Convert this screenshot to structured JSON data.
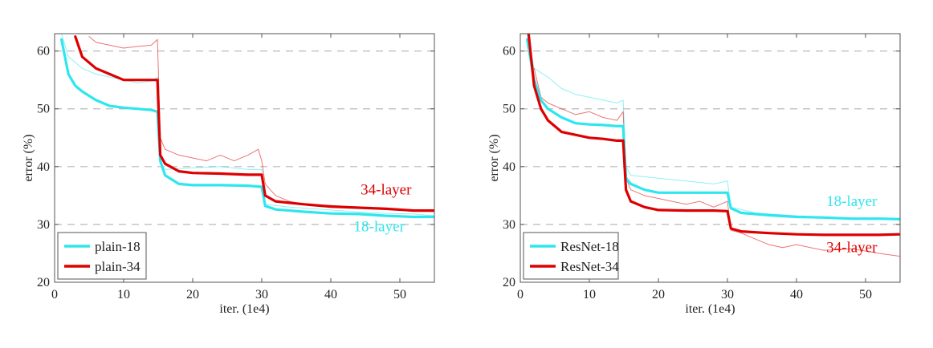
{
  "colors": {
    "cyan": "#2ee6ee",
    "red": "#dd0000",
    "grid": "#b8b8b8"
  },
  "chart_data": [
    {
      "type": "line",
      "xlabel": "iter. (1e4)",
      "ylabel": "error (%)",
      "xlim": [
        0,
        55
      ],
      "ylim": [
        20,
        63
      ],
      "xticks": [
        0,
        10,
        20,
        30,
        40,
        50
      ],
      "yticks": [
        20,
        30,
        40,
        50,
        60
      ],
      "grid": "horizontal dashed",
      "legend_position": "bottom-left",
      "legend": [
        "plain-18",
        "plain-34"
      ],
      "annotations": [
        {
          "text": "34-layer",
          "color": "red",
          "x": 48,
          "y": 35.2
        },
        {
          "text": "18-layer",
          "color": "cyan",
          "x": 47,
          "y": 28.8
        }
      ],
      "series": [
        {
          "name": "plain-18",
          "color": "cyan",
          "style": "bold",
          "x": [
            1,
            2,
            3,
            4,
            6,
            8,
            10,
            12,
            14,
            14.9,
            15.3,
            16,
            18,
            20,
            24,
            28,
            30,
            30.5,
            32,
            36,
            40,
            44,
            48,
            52,
            55
          ],
          "y": [
            62,
            56,
            54,
            53,
            51.5,
            50.5,
            50.2,
            50,
            49.8,
            49.5,
            41,
            38.5,
            37,
            36.8,
            36.8,
            36.7,
            36.5,
            33.2,
            32.6,
            32.2,
            31.9,
            31.8,
            31.5,
            31.3,
            31.3
          ]
        },
        {
          "name": "plain-34",
          "color": "red",
          "style": "bold",
          "x": [
            3,
            4,
            6,
            8,
            10,
            12,
            14,
            14.9,
            15.3,
            16,
            18,
            20,
            24,
            28,
            30,
            30.5,
            32,
            36,
            40,
            44,
            48,
            52,
            55
          ],
          "y": [
            62.5,
            59,
            57,
            56,
            55,
            55,
            55,
            55,
            42,
            40.5,
            39.2,
            38.9,
            38.8,
            38.6,
            38.6,
            35,
            34,
            33.5,
            33.1,
            32.9,
            32.7,
            32.4,
            32.4
          ]
        },
        {
          "name": "plain-18 train",
          "color": "cyan",
          "style": "thin",
          "x": [
            1,
            2,
            4,
            6,
            8,
            10,
            12,
            14,
            14.9,
            15.3,
            16,
            20,
            24,
            28,
            30,
            30.5,
            34,
            40,
            46,
            52,
            55
          ],
          "y": [
            63,
            59,
            57,
            56,
            55.5,
            55,
            54.5,
            54.8,
            55.5,
            40.5,
            39.5,
            39.8,
            40,
            39.5,
            39.5,
            33.5,
            33,
            32.5,
            32,
            31.8,
            31.5
          ]
        },
        {
          "name": "plain-34 train",
          "color": "red",
          "style": "thin",
          "x": [
            5,
            6,
            8,
            10,
            12,
            14,
            14.9,
            15.3,
            16,
            18,
            20,
            22,
            24,
            26,
            28,
            29.5,
            30,
            30.5,
            32,
            34,
            36,
            40,
            44,
            48,
            52,
            55
          ],
          "y": [
            62.5,
            61.5,
            61,
            60.5,
            60.8,
            61,
            62,
            45,
            43,
            42,
            41.5,
            41,
            42,
            41,
            42,
            43,
            41,
            37,
            35,
            34,
            33.5,
            33.3,
            33,
            32.8,
            32.5,
            32.2
          ]
        }
      ]
    },
    {
      "type": "line",
      "xlabel": "iter. (1e4)",
      "ylabel": "error (%)",
      "xlim": [
        0,
        55
      ],
      "ylim": [
        20,
        63
      ],
      "xticks": [
        0,
        10,
        20,
        30,
        40,
        50
      ],
      "yticks": [
        20,
        30,
        40,
        50,
        60
      ],
      "grid": "horizontal dashed",
      "legend_position": "bottom-left",
      "legend": [
        "ResNet-18",
        "ResNet-34"
      ],
      "annotations": [
        {
          "text": "18-layer",
          "color": "cyan",
          "x": 48,
          "y": 33.2
        },
        {
          "text": "34-layer",
          "color": "red",
          "x": 48,
          "y": 25.2
        }
      ],
      "series": [
        {
          "name": "ResNet-18",
          "color": "cyan",
          "style": "bold",
          "x": [
            1,
            2,
            3,
            4,
            6,
            8,
            10,
            12,
            14,
            14.9,
            15.3,
            16,
            18,
            20,
            24,
            28,
            30,
            30.5,
            32,
            36,
            40,
            44,
            48,
            52,
            55
          ],
          "y": [
            62,
            55,
            51.5,
            50,
            48.5,
            47.5,
            47.3,
            47.2,
            47,
            47,
            38,
            37,
            36,
            35.5,
            35.5,
            35.5,
            35.5,
            32.8,
            32,
            31.6,
            31.3,
            31.2,
            31,
            31,
            30.9
          ]
        },
        {
          "name": "ResNet-34",
          "color": "red",
          "style": "bold",
          "x": [
            1.2,
            2,
            3,
            4,
            6,
            8,
            10,
            12,
            14,
            14.9,
            15.3,
            16,
            18,
            20,
            24,
            28,
            30,
            30.5,
            32,
            36,
            40,
            44,
            48,
            52,
            55
          ],
          "y": [
            63,
            54,
            50,
            48,
            46,
            45.5,
            45,
            44.8,
            44.5,
            44.5,
            36,
            34,
            33,
            32.5,
            32.4,
            32.4,
            32.3,
            29.3,
            28.8,
            28.5,
            28.3,
            28.2,
            28.2,
            28.2,
            28.3
          ]
        },
        {
          "name": "ResNet-18 train",
          "color": "cyan",
          "style": "thin",
          "x": [
            1,
            2,
            4,
            6,
            8,
            10,
            12,
            14,
            14.9,
            15.3,
            16,
            20,
            24,
            28,
            30,
            30.5,
            34,
            40,
            46,
            52,
            55
          ],
          "y": [
            63,
            57,
            55.5,
            53.5,
            52.5,
            52,
            51.5,
            51,
            51.5,
            40,
            38.5,
            38,
            37.5,
            37,
            37.5,
            33,
            32,
            31.5,
            31.2,
            31,
            30.8
          ]
        },
        {
          "name": "ResNet-34 train",
          "color": "red",
          "style": "thin",
          "x": [
            2,
            3,
            4,
            6,
            8,
            10,
            12,
            14,
            14.9,
            15.3,
            16,
            18,
            20,
            22,
            24,
            26,
            28,
            30,
            30.5,
            32,
            34,
            36,
            38,
            40,
            44,
            48,
            52,
            55
          ],
          "y": [
            57,
            52,
            51,
            50,
            49,
            49.5,
            48.5,
            48,
            49.5,
            38,
            36,
            35,
            34.5,
            34,
            33.5,
            34,
            33,
            34,
            29,
            28.5,
            27.5,
            26.5,
            26,
            26.5,
            25.5,
            25.8,
            25,
            24.5
          ]
        }
      ]
    }
  ]
}
